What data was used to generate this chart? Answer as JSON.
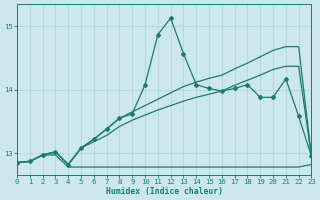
{
  "xlabel": "Humidex (Indice chaleur)",
  "bg_color": "#cde8ed",
  "line_color": "#1a7a6e",
  "grid_color": "#b8d8de",
  "xlim": [
    0,
    23
  ],
  "ylim": [
    12.65,
    15.35
  ],
  "yticks": [
    13,
    14,
    15
  ],
  "xticks": [
    0,
    1,
    2,
    3,
    4,
    5,
    6,
    7,
    8,
    9,
    10,
    11,
    12,
    13,
    14,
    15,
    16,
    17,
    18,
    19,
    20,
    21,
    22,
    23
  ],
  "curve_spike": [
    12.85,
    12.87,
    12.97,
    13.02,
    12.82,
    13.08,
    13.22,
    13.38,
    13.55,
    13.62,
    14.08,
    14.87,
    15.13,
    14.57,
    14.08,
    14.02,
    13.98,
    14.02,
    14.08,
    13.88,
    13.88,
    14.17,
    13.58,
    12.95
  ],
  "curve_upper": [
    12.85,
    12.87,
    12.97,
    13.02,
    12.82,
    13.08,
    13.22,
    13.38,
    13.55,
    13.65,
    13.75,
    13.85,
    13.95,
    14.05,
    14.12,
    14.18,
    14.23,
    14.33,
    14.42,
    14.52,
    14.62,
    14.68,
    14.68,
    12.95
  ],
  "curve_lower": [
    12.85,
    12.87,
    12.97,
    13.02,
    12.82,
    13.08,
    13.18,
    13.28,
    13.42,
    13.52,
    13.6,
    13.68,
    13.75,
    13.82,
    13.88,
    13.93,
    13.98,
    14.07,
    14.15,
    14.23,
    14.32,
    14.37,
    14.37,
    12.95
  ],
  "curve_flat": [
    12.85,
    12.87,
    12.97,
    12.97,
    12.78,
    12.78,
    12.78,
    12.78,
    12.78,
    12.78,
    12.78,
    12.78,
    12.78,
    12.78,
    12.78,
    12.78,
    12.78,
    12.78,
    12.78,
    12.78,
    12.78,
    12.78,
    12.78,
    12.82
  ]
}
